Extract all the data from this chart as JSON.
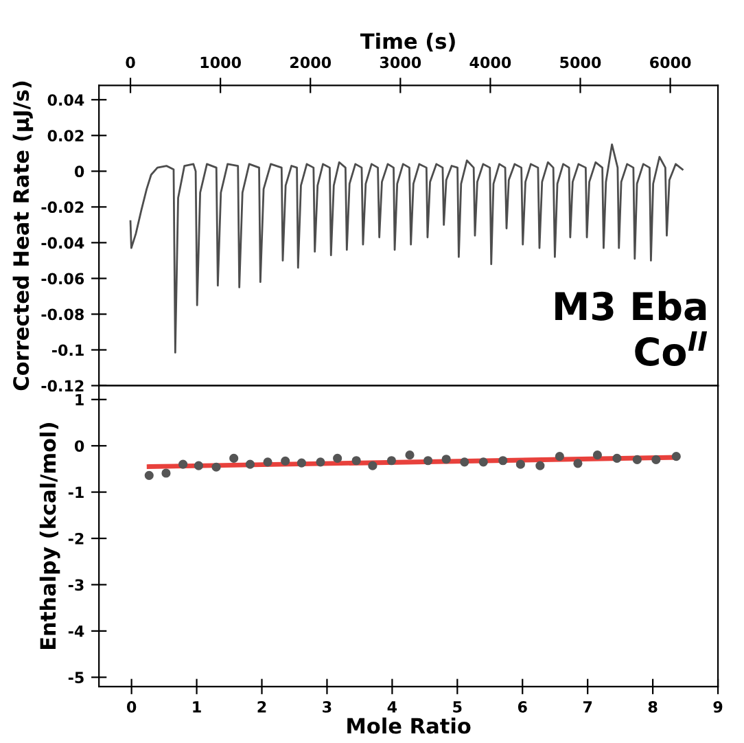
{
  "chart_data": [
    {
      "type": "line",
      "xlabel": "Time (s)",
      "ylabel": "Corrected Heat Rate (μJ/s)",
      "xlim": [
        -350,
        6530
      ],
      "xticks": [
        0,
        1000,
        2000,
        3000,
        4000,
        5000,
        6000
      ],
      "ylim": [
        -0.12,
        0.048
      ],
      "yticks": [
        0.04,
        0.02,
        0,
        -0.02,
        -0.04,
        -0.06,
        -0.08,
        -0.1,
        -0.12
      ],
      "grid": false,
      "legend": false,
      "annotations": [
        "M3 Eba\nCo$^{II}$"
      ],
      "series": [
        {
          "color": "#4d4d4d",
          "x": [
            0,
            10,
            60,
            120,
            180,
            230,
            300,
            400,
            480,
            498,
            530,
            600,
            700,
            725,
            741,
            775,
            850,
            955,
            971,
            1005,
            1080,
            1195,
            1210,
            1245,
            1320,
            1430,
            1444,
            1480,
            1560,
            1680,
            1693,
            1725,
            1790,
            1850,
            1863,
            1895,
            1960,
            2035,
            2049,
            2080,
            2140,
            2215,
            2229,
            2260,
            2320,
            2390,
            2405,
            2435,
            2500,
            2570,
            2585,
            2615,
            2680,
            2750,
            2766,
            2795,
            2860,
            2925,
            2937,
            2965,
            3030,
            3100,
            3117,
            3145,
            3210,
            3290,
            3302,
            3330,
            3400,
            3470,
            3483,
            3510,
            3570,
            3635,
            3649,
            3675,
            3740,
            3815,
            3829,
            3855,
            3920,
            3995,
            4010,
            4035,
            4100,
            4165,
            4180,
            4205,
            4270,
            4345,
            4361,
            4390,
            4450,
            4530,
            4546,
            4575,
            4640,
            4700,
            4717,
            4745,
            4810,
            4875,
            4888,
            4915,
            4980,
            5060,
            5073,
            5100,
            5170,
            5245,
            5259,
            5285,
            5352,
            5415,
            5429,
            5455,
            5520,
            5590,
            5605,
            5630,
            5700,
            5770,
            5785,
            5810,
            5880,
            5945,
            5961,
            5990,
            6060,
            6136
          ],
          "values": [
            -0.028,
            -0.043,
            -0.035,
            -0.022,
            -0.01,
            -0.002,
            0.002,
            0.003,
            0.001,
            -0.1015,
            -0.015,
            0.003,
            0.004,
            0.0,
            -0.075,
            -0.012,
            0.004,
            0.002,
            -0.064,
            -0.012,
            0.004,
            0.003,
            -0.065,
            -0.012,
            0.004,
            0.002,
            -0.062,
            -0.01,
            0.004,
            0.002,
            -0.05,
            -0.008,
            0.003,
            0.002,
            -0.054,
            -0.008,
            0.004,
            0.002,
            -0.045,
            -0.008,
            0.004,
            0.002,
            -0.047,
            -0.008,
            0.005,
            0.002,
            -0.044,
            -0.007,
            0.004,
            0.002,
            -0.041,
            -0.007,
            0.004,
            0.002,
            -0.037,
            -0.006,
            0.004,
            0.002,
            -0.044,
            -0.007,
            0.004,
            0.002,
            -0.041,
            -0.007,
            0.004,
            0.002,
            -0.037,
            -0.006,
            0.004,
            0.002,
            -0.03,
            -0.005,
            0.003,
            0.002,
            -0.048,
            -0.007,
            0.006,
            0.002,
            -0.036,
            -0.006,
            0.004,
            0.002,
            -0.052,
            -0.007,
            0.004,
            0.002,
            -0.032,
            -0.005,
            0.004,
            0.002,
            -0.041,
            -0.006,
            0.004,
            0.002,
            -0.043,
            -0.006,
            0.005,
            0.002,
            -0.048,
            -0.007,
            0.004,
            0.002,
            -0.037,
            -0.006,
            0.004,
            0.002,
            -0.037,
            -0.006,
            0.005,
            0.002,
            -0.043,
            -0.006,
            0.015,
            0.002,
            -0.043,
            -0.006,
            0.004,
            0.002,
            -0.049,
            -0.007,
            0.004,
            0.002,
            -0.05,
            -0.007,
            0.008,
            0.002,
            -0.036,
            -0.005,
            0.004,
            0.001
          ]
        }
      ]
    },
    {
      "type": "scatter",
      "xlabel": "Mole Ratio",
      "ylabel": "Enthalpy (kcal/mol)",
      "xlim": [
        -0.5,
        9
      ],
      "xticks": [
        0,
        1,
        2,
        3,
        4,
        5,
        6,
        7,
        8,
        9
      ],
      "ylim": [
        -5.2,
        1.3
      ],
      "yticks": [
        1,
        0,
        -1,
        -2,
        -3,
        -4,
        -5
      ],
      "grid": false,
      "legend": false,
      "marker": "circle",
      "series": [
        {
          "color": "#555555",
          "x": [
            0.27,
            0.53,
            0.79,
            1.03,
            1.3,
            1.57,
            1.82,
            2.09,
            2.36,
            2.61,
            2.9,
            3.16,
            3.45,
            3.7,
            3.99,
            4.27,
            4.55,
            4.83,
            5.11,
            5.4,
            5.7,
            5.97,
            6.27,
            6.57,
            6.85,
            7.15,
            7.45,
            7.76,
            8.05,
            8.36
          ],
          "values": [
            -0.64,
            -0.59,
            -0.4,
            -0.43,
            -0.46,
            -0.27,
            -0.4,
            -0.35,
            -0.33,
            -0.37,
            -0.35,
            -0.27,
            -0.32,
            -0.43,
            -0.32,
            -0.2,
            -0.32,
            -0.29,
            -0.35,
            -0.35,
            -0.32,
            -0.4,
            -0.43,
            -0.23,
            -0.38,
            -0.2,
            -0.27,
            -0.3,
            -0.3,
            -0.23
          ]
        },
        {
          "type": "line",
          "color": "#e8413c",
          "marker": "none",
          "x": [
            0.27,
            8.36
          ],
          "values": [
            -0.45,
            -0.25
          ]
        }
      ]
    }
  ]
}
